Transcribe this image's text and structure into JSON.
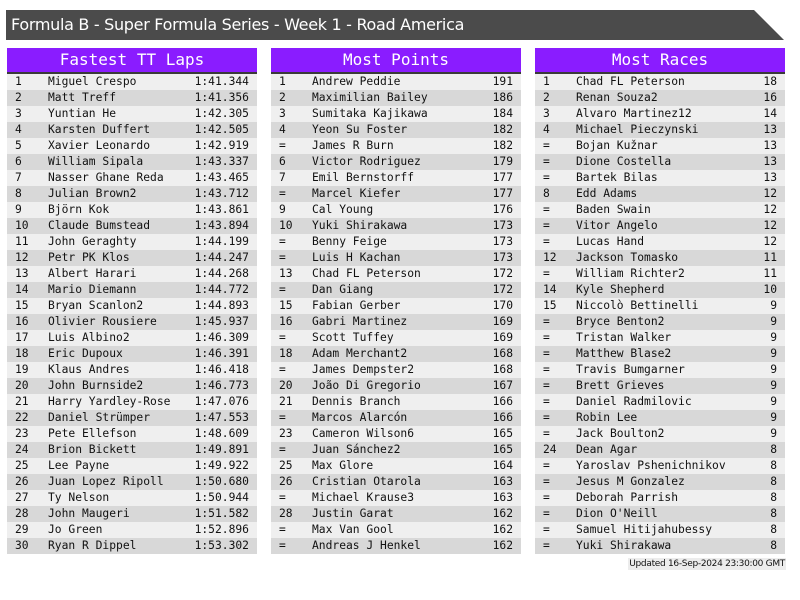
{
  "title": "Formula B - Super Formula Series - Week 1 - Road America",
  "colors": {
    "header": "#8a1cff",
    "titlebar": "#4b4b4b"
  },
  "tables": [
    {
      "heading": "Fastest TT Laps",
      "rows": [
        [
          "1",
          "Miguel Crespo",
          "1:41.344"
        ],
        [
          "2",
          "Matt Treff",
          "1:41.356"
        ],
        [
          "3",
          "Yuntian He",
          "1:42.305"
        ],
        [
          "4",
          "Karsten Duffert",
          "1:42.505"
        ],
        [
          "5",
          "Xavier Leonardo",
          "1:42.919"
        ],
        [
          "6",
          "William Sipala",
          "1:43.337"
        ],
        [
          "7",
          "Nasser Ghane Reda",
          "1:43.465"
        ],
        [
          "8",
          "Julian Brown2",
          "1:43.712"
        ],
        [
          "9",
          "Björn Kok",
          "1:43.861"
        ],
        [
          "10",
          "Claude Bumstead",
          "1:43.894"
        ],
        [
          "11",
          "John Geraghty",
          "1:44.199"
        ],
        [
          "12",
          "Petr PK Klos",
          "1:44.247"
        ],
        [
          "13",
          "Albert Harari",
          "1:44.268"
        ],
        [
          "14",
          "Mario Diemann",
          "1:44.772"
        ],
        [
          "15",
          "Bryan Scanlon2",
          "1:44.893"
        ],
        [
          "16",
          "Olivier Rousiere",
          "1:45.937"
        ],
        [
          "17",
          "Luis Albino2",
          "1:46.309"
        ],
        [
          "18",
          "Eric Dupoux",
          "1:46.391"
        ],
        [
          "19",
          "Klaus Andres",
          "1:46.418"
        ],
        [
          "20",
          "John Burnside2",
          "1:46.773"
        ],
        [
          "21",
          "Harry Yardley-Rose",
          "1:47.076"
        ],
        [
          "22",
          "Daniel Strümper",
          "1:47.553"
        ],
        [
          "23",
          "Pete Ellefson",
          "1:48.609"
        ],
        [
          "24",
          "Brion Bickett",
          "1:49.891"
        ],
        [
          "25",
          "Lee Payne",
          "1:49.922"
        ],
        [
          "26",
          "Juan Lopez Ripoll",
          "1:50.680"
        ],
        [
          "27",
          "Ty Nelson",
          "1:50.944"
        ],
        [
          "28",
          "John Maugeri",
          "1:51.582"
        ],
        [
          "29",
          "Jo Green",
          "1:52.896"
        ],
        [
          "30",
          "Ryan R Dippel",
          "1:53.302"
        ]
      ]
    },
    {
      "heading": "Most Points",
      "rows": [
        [
          "1",
          "Andrew Peddie",
          "191"
        ],
        [
          "2",
          "Maximilian Bailey",
          "186"
        ],
        [
          "3",
          "Sumitaka Kajikawa",
          "184"
        ],
        [
          "4",
          "Yeon Su Foster",
          "182"
        ],
        [
          "=",
          "James R Burn",
          "182"
        ],
        [
          "6",
          "Victor Rodriguez",
          "179"
        ],
        [
          "7",
          "Emil Bernstorff",
          "177"
        ],
        [
          "=",
          "Marcel Kiefer",
          "177"
        ],
        [
          "9",
          "Cal Young",
          "176"
        ],
        [
          "10",
          "Yuki Shirakawa",
          "173"
        ],
        [
          "=",
          "Benny Feige",
          "173"
        ],
        [
          "=",
          "Luis H Kachan",
          "173"
        ],
        [
          "13",
          "Chad FL Peterson",
          "172"
        ],
        [
          "=",
          "Dan Giang",
          "172"
        ],
        [
          "15",
          "Fabian Gerber",
          "170"
        ],
        [
          "16",
          "Gabri Martinez",
          "169"
        ],
        [
          "=",
          "Scott Tuffey",
          "169"
        ],
        [
          "18",
          "Adam Merchant2",
          "168"
        ],
        [
          "=",
          "James Dempster2",
          "168"
        ],
        [
          "20",
          "João Di Gregorio",
          "167"
        ],
        [
          "21",
          "Dennis Branch",
          "166"
        ],
        [
          "=",
          "Marcos Alarcón",
          "166"
        ],
        [
          "23",
          "Cameron Wilson6",
          "165"
        ],
        [
          "=",
          "Juan Sánchez2",
          "165"
        ],
        [
          "25",
          "Max Glore",
          "164"
        ],
        [
          "26",
          "Cristian Otarola",
          "163"
        ],
        [
          "=",
          "Michael Krause3",
          "163"
        ],
        [
          "28",
          "Justin Garat",
          "162"
        ],
        [
          "=",
          "Max Van Gool",
          "162"
        ],
        [
          "=",
          "Andreas J Henkel",
          "162"
        ]
      ]
    },
    {
      "heading": "Most Races",
      "rows": [
        [
          "1",
          "Chad FL Peterson",
          "18"
        ],
        [
          "2",
          "Renan Souza2",
          "16"
        ],
        [
          "3",
          "Alvaro Martinez12",
          "14"
        ],
        [
          "4",
          "Michael Pieczynski",
          "13"
        ],
        [
          "=",
          "Bojan Kužnar",
          "13"
        ],
        [
          "=",
          "Dione Costella",
          "13"
        ],
        [
          "=",
          "Bartek Bilas",
          "13"
        ],
        [
          "8",
          "Edd Adams",
          "12"
        ],
        [
          "=",
          "Baden Swain",
          "12"
        ],
        [
          "=",
          "Vitor Angelo",
          "12"
        ],
        [
          "=",
          "Lucas Hand",
          "12"
        ],
        [
          "12",
          "Jackson Tomasko",
          "11"
        ],
        [
          "=",
          "William Richter2",
          "11"
        ],
        [
          "14",
          "Kyle Shepherd",
          "10"
        ],
        [
          "15",
          "Niccolò Bettinelli",
          "9"
        ],
        [
          "=",
          "Bryce Benton2",
          "9"
        ],
        [
          "=",
          "Tristan Walker",
          "9"
        ],
        [
          "=",
          "Matthew Blase2",
          "9"
        ],
        [
          "=",
          "Travis Bumgarner",
          "9"
        ],
        [
          "=",
          "Brett Grieves",
          "9"
        ],
        [
          "=",
          "Daniel Radmilovic",
          "9"
        ],
        [
          "=",
          "Robin Lee",
          "9"
        ],
        [
          "=",
          "Jack Boulton2",
          "9"
        ],
        [
          "24",
          "Dean Agar",
          "8"
        ],
        [
          "=",
          "Yaroslav Pshenichnikov",
          "8"
        ],
        [
          "=",
          "Jesus M Gonzalez",
          "8"
        ],
        [
          "=",
          "Deborah Parrish",
          "8"
        ],
        [
          "=",
          "Dion O'Neill",
          "8"
        ],
        [
          "=",
          "Samuel Hitijahubessy",
          "8"
        ],
        [
          "=",
          "Yuki Shirakawa",
          "8"
        ]
      ]
    }
  ],
  "footer": "Updated 16-Sep-2024 23:30:00 GMT"
}
